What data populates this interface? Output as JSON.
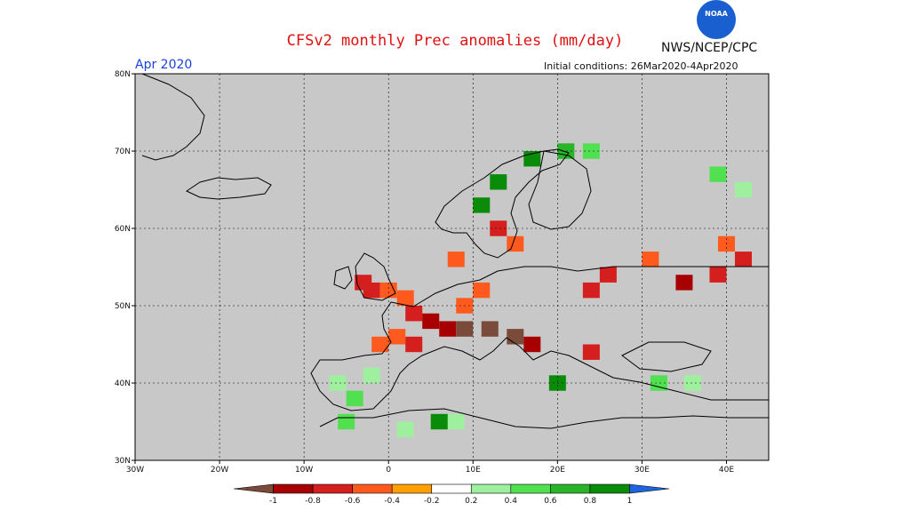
{
  "title": "CFSv2 monthly Prec anomalies (mm/day)",
  "agency": "NWS/NCEP/CPC",
  "logo_text": "NOAA",
  "valid_month": "Apr 2020",
  "initial_conditions": "Initial conditions: 26Mar2020-4Apr2020",
  "map": {
    "lon_range": [
      -30,
      45
    ],
    "lat_range": [
      30,
      80
    ],
    "lon_ticks": [
      {
        "value": -30,
        "label": "30W"
      },
      {
        "value": -20,
        "label": "20W"
      },
      {
        "value": -10,
        "label": "10W"
      },
      {
        "value": 0,
        "label": "0"
      },
      {
        "value": 10,
        "label": "10E"
      },
      {
        "value": 20,
        "label": "20E"
      },
      {
        "value": 30,
        "label": "30E"
      },
      {
        "value": 40,
        "label": "40E"
      }
    ],
    "lat_ticks": [
      {
        "value": 30,
        "label": "30N"
      },
      {
        "value": 40,
        "label": "40N"
      },
      {
        "value": 50,
        "label": "50N"
      },
      {
        "value": 60,
        "label": "60N"
      },
      {
        "value": 70,
        "label": "70N"
      },
      {
        "value": 80,
        "label": "80N"
      }
    ],
    "background_color": "#c8c8c8",
    "anomaly_cells": [
      {
        "lon": -3,
        "lat": 53,
        "cat": 2
      },
      {
        "lon": -2,
        "lat": 52,
        "cat": 2
      },
      {
        "lon": 0,
        "lat": 52,
        "cat": 3
      },
      {
        "lon": 2,
        "lat": 51,
        "cat": 3
      },
      {
        "lon": 3,
        "lat": 49,
        "cat": 2
      },
      {
        "lon": 5,
        "lat": 48,
        "cat": 1
      },
      {
        "lon": 7,
        "lat": 47,
        "cat": 1
      },
      {
        "lon": 9,
        "lat": 47,
        "cat": 0
      },
      {
        "lon": 12,
        "lat": 47,
        "cat": 0
      },
      {
        "lon": 15,
        "lat": 46,
        "cat": 0
      },
      {
        "lon": 17,
        "lat": 45,
        "cat": 1
      },
      {
        "lon": 1,
        "lat": 46,
        "cat": 3
      },
      {
        "lon": -1,
        "lat": 45,
        "cat": 3
      },
      {
        "lon": 3,
        "lat": 45,
        "cat": 2
      },
      {
        "lon": 9,
        "lat": 50,
        "cat": 3
      },
      {
        "lon": 11,
        "lat": 52,
        "cat": 3
      },
      {
        "lon": 8,
        "lat": 56,
        "cat": 3
      },
      {
        "lon": 13,
        "lat": 60,
        "cat": 2
      },
      {
        "lon": 15,
        "lat": 58,
        "cat": 3
      },
      {
        "lon": 24,
        "lat": 52,
        "cat": 2
      },
      {
        "lon": 26,
        "lat": 54,
        "cat": 2
      },
      {
        "lon": 35,
        "lat": 53,
        "cat": 1
      },
      {
        "lon": 39,
        "lat": 54,
        "cat": 2
      },
      {
        "lon": 42,
        "lat": 56,
        "cat": 2
      },
      {
        "lon": 40,
        "lat": 58,
        "cat": 3
      },
      {
        "lon": 31,
        "lat": 56,
        "cat": 3
      },
      {
        "lon": 24,
        "lat": 44,
        "cat": 2
      },
      {
        "lon": -6,
        "lat": 40,
        "cat": 6
      },
      {
        "lon": -4,
        "lat": 38,
        "cat": 7
      },
      {
        "lon": -2,
        "lat": 41,
        "cat": 6
      },
      {
        "lon": -5,
        "lat": 35,
        "cat": 7
      },
      {
        "lon": 2,
        "lat": 34,
        "cat": 6
      },
      {
        "lon": 8,
        "lat": 35,
        "cat": 6
      },
      {
        "lon": 11,
        "lat": 63,
        "cat": 9
      },
      {
        "lon": 13,
        "lat": 66,
        "cat": 9
      },
      {
        "lon": 17,
        "lat": 69,
        "cat": 9
      },
      {
        "lon": 21,
        "lat": 70,
        "cat": 8
      },
      {
        "lon": 24,
        "lat": 70,
        "cat": 7
      },
      {
        "lon": 20,
        "lat": 40,
        "cat": 9
      },
      {
        "lon": 32,
        "lat": 40,
        "cat": 7
      },
      {
        "lon": 36,
        "lat": 40,
        "cat": 6
      },
      {
        "lon": 39,
        "lat": 67,
        "cat": 7
      },
      {
        "lon": 42,
        "lat": 65,
        "cat": 6
      },
      {
        "lon": 6,
        "lat": 35,
        "cat": 9
      }
    ]
  },
  "colorbar": {
    "labels": [
      "-1",
      "-0.8",
      "-0.6",
      "-0.4",
      "-0.2",
      "0.2",
      "0.4",
      "0.6",
      "0.8",
      "1"
    ],
    "colors": [
      "#7a4a3a",
      "#a80000",
      "#d51e1e",
      "#ff5a1e",
      "#ff9f00",
      "#ffffff",
      "#9ef09e",
      "#50e050",
      "#2ab42a",
      "#0a8c0a",
      "#1e64dc"
    ]
  }
}
